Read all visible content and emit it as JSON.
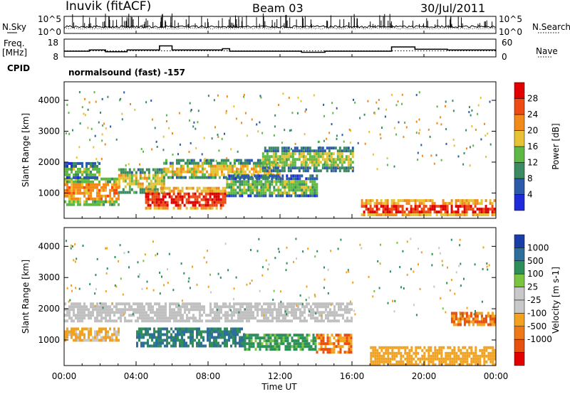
{
  "header": {
    "station": "Inuvik (fitACF)",
    "beam": "Beam 03",
    "date": "30/Jul/2011"
  },
  "left_labels": {
    "nsky": "N.Sky",
    "freq_line1": "Freq.",
    "freq_line2": "[MHz]",
    "cpid": "CPID"
  },
  "right_labels": {
    "nsearch": "N.Search",
    "nave": "Nave"
  },
  "cpid_text": "normalsound (fast) -157",
  "colors": {
    "power_scale": [
      "#1f2bd8",
      "#2d5aa8",
      "#3b8a62",
      "#5fb845",
      "#e6c234",
      "#f28a1a",
      "#ef4a12",
      "#e00000"
    ],
    "velocity_scale": [
      "#1a3ea8",
      "#2d6e9a",
      "#2f8f58",
      "#7cc43f",
      "#c8c8c8",
      "#c8c8c8",
      "#f2a21e",
      "#ef7818",
      "#e85010",
      "#e00000"
    ],
    "ground_scatter": "#c0c0c0"
  },
  "chart_data": [
    {
      "type": "line",
      "name": "noise-panel",
      "left_axis": {
        "label": "N.Sky",
        "ticks": [
          "10^5",
          "10^0"
        ]
      },
      "right_axis": {
        "label": "N.Search",
        "ticks": [
          "10^5",
          "10^0"
        ]
      },
      "x": {
        "range": [
          "00:00",
          "00:00"
        ]
      }
    },
    {
      "type": "line",
      "name": "freq-nave-panel",
      "left_axis": {
        "label": "Freq. [MHz]",
        "ticks": [
          18,
          8
        ]
      },
      "right_axis": {
        "label": "Nave",
        "ticks": [
          60,
          0
        ]
      },
      "freq_steps": [
        {
          "t": 0.0,
          "v": 11.2
        },
        {
          "t": 1.4,
          "v": 11.9
        },
        {
          "t": 2.3,
          "v": 10.9
        },
        {
          "t": 3.5,
          "v": 11.9
        },
        {
          "t": 5.3,
          "v": 14.2
        },
        {
          "t": 6.0,
          "v": 11.9
        },
        {
          "t": 8.8,
          "v": 12.6
        },
        {
          "t": 9.2,
          "v": 11.2
        },
        {
          "t": 13.2,
          "v": 10.6
        },
        {
          "t": 14.5,
          "v": 11.2
        },
        {
          "t": 18.2,
          "v": 13.6
        },
        {
          "t": 19.5,
          "v": 12.3
        },
        {
          "t": 21.3,
          "v": 11.9
        },
        {
          "t": 24.0,
          "v": 11.9
        }
      ]
    },
    {
      "type": "heatmap",
      "name": "power-panel",
      "title": "",
      "xlabel": "",
      "ylabel": "Slant Range [km]",
      "xlim": [
        0,
        24
      ],
      "ylim": [
        180,
        4600
      ],
      "yticks": [
        1000,
        2000,
        3000,
        4000
      ],
      "colorbar": {
        "label": "Power [dB]",
        "ticks": [
          4,
          8,
          12,
          16,
          20,
          24,
          28
        ]
      },
      "bands": [
        {
          "t0": 0.0,
          "t1": 3.0,
          "r0": 600,
          "r1": 1500,
          "power": 22
        },
        {
          "t0": 0.0,
          "t1": 2.0,
          "r0": 1500,
          "r1": 2000,
          "power": 14
        },
        {
          "t0": 3.0,
          "t1": 5.5,
          "r0": 1000,
          "r1": 1800,
          "power": 18
        },
        {
          "t0": 4.5,
          "t1": 9.0,
          "r0": 500,
          "r1": 1200,
          "power": 28
        },
        {
          "t0": 5.5,
          "t1": 12.0,
          "r0": 1500,
          "r1": 2100,
          "power": 18
        },
        {
          "t0": 9.0,
          "t1": 14.0,
          "r0": 900,
          "r1": 1600,
          "power": 14
        },
        {
          "t0": 11.0,
          "t1": 16.0,
          "r0": 1700,
          "r1": 2500,
          "power": 16
        },
        {
          "t0": 16.5,
          "t1": 24.0,
          "r0": 250,
          "r1": 800,
          "power": 28
        }
      ]
    },
    {
      "type": "heatmap",
      "name": "velocity-panel",
      "title": "",
      "xlabel": "Time UT",
      "ylabel": "Slant Range [km]",
      "xlim": [
        0,
        24
      ],
      "ylim": [
        180,
        4600
      ],
      "xticks": [
        "00:00",
        "04:00",
        "08:00",
        "12:00",
        "16:00",
        "20:00",
        "00:00"
      ],
      "yticks": [
        1000,
        2000,
        3000,
        4000
      ],
      "colorbar": {
        "label": "Velocity [m s-1]",
        "ticks": [
          1000,
          500,
          100,
          25,
          -25,
          -100,
          -500,
          -1000
        ]
      },
      "bands": [
        {
          "t0": 0.0,
          "t1": 3.0,
          "r0": 1000,
          "r1": 1400,
          "velocity": -100
        },
        {
          "t0": 0.0,
          "t1": 16.0,
          "r0": 1600,
          "r1": 2200,
          "velocity": 0
        },
        {
          "t0": 4.0,
          "t1": 10.0,
          "r0": 800,
          "r1": 1400,
          "velocity": 300
        },
        {
          "t0": 10.0,
          "t1": 14.0,
          "r0": 700,
          "r1": 1200,
          "velocity": 100
        },
        {
          "t0": 14.0,
          "t1": 16.0,
          "r0": 600,
          "r1": 1200,
          "velocity": -300
        },
        {
          "t0": 17.0,
          "t1": 24.0,
          "r0": 250,
          "r1": 800,
          "velocity": -200
        },
        {
          "t0": 21.5,
          "t1": 24.0,
          "r0": 1500,
          "r1": 1900,
          "velocity": -300
        }
      ]
    }
  ]
}
